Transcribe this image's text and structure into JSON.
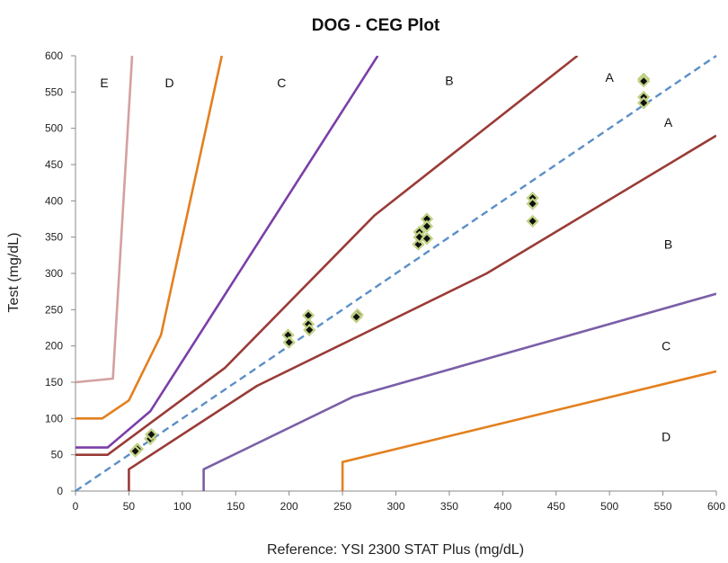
{
  "chart_data": {
    "type": "scatter",
    "title": "DOG - CEG Plot",
    "xlabel": "Reference: YSI 2300 STAT Plus (mg/dL)",
    "ylabel": "Test (mg/dL)",
    "xlim": [
      0,
      600
    ],
    "ylim": [
      0,
      600
    ],
    "xticks": [
      "0",
      "50",
      "100",
      "150",
      "200",
      "250",
      "300",
      "350",
      "400",
      "450",
      "500",
      "550",
      "600"
    ],
    "yticks": [
      "0",
      "50",
      "100",
      "150",
      "200",
      "250",
      "300",
      "350",
      "400",
      "450",
      "500",
      "550",
      "600"
    ],
    "grid": false,
    "legend": "none",
    "identity_line": {
      "x": [
        0,
        600
      ],
      "y": [
        0,
        600
      ],
      "color": "#5b8fc7",
      "style": "dashed"
    },
    "zone_lines": [
      {
        "color": "#d4a0a0",
        "points": [
          [
            0,
            150
          ],
          [
            35,
            155
          ],
          [
            53,
            600
          ]
        ]
      },
      {
        "color": "#e3801e",
        "points": [
          [
            0,
            100
          ],
          [
            25,
            100
          ],
          [
            50,
            125
          ],
          [
            80,
            215
          ],
          [
            137,
            600
          ]
        ]
      },
      {
        "color": "#7b3fa8",
        "points": [
          [
            0,
            60
          ],
          [
            30,
            60
          ],
          [
            70,
            110
          ],
          [
            283,
            600
          ]
        ]
      },
      {
        "color": "#9a3b37",
        "points": [
          [
            0,
            50
          ],
          [
            30,
            50
          ],
          [
            140,
            170
          ],
          [
            280,
            380
          ],
          [
            470,
            600
          ]
        ]
      },
      {
        "color": "#9a3b37",
        "points": [
          [
            50,
            0
          ],
          [
            50,
            30
          ],
          [
            170,
            145
          ],
          [
            385,
            300
          ],
          [
            600,
            490
          ]
        ]
      },
      {
        "color": "#7a5fa8",
        "points": [
          [
            120,
            0
          ],
          [
            120,
            30
          ],
          [
            260,
            130
          ],
          [
            600,
            272
          ]
        ]
      },
      {
        "color": "#e3801e",
        "points": [
          [
            250,
            0
          ],
          [
            250,
            40
          ],
          [
            600,
            165
          ]
        ]
      }
    ],
    "zone_labels": [
      {
        "text": "E",
        "x": 27,
        "y": 563
      },
      {
        "text": "D",
        "x": 88,
        "y": 563
      },
      {
        "text": "C",
        "x": 193,
        "y": 563
      },
      {
        "text": "B",
        "x": 350,
        "y": 566
      },
      {
        "text": "A",
        "x": 500,
        "y": 570
      },
      {
        "text": "A",
        "x": 555,
        "y": 508
      },
      {
        "text": "B",
        "x": 555,
        "y": 340
      },
      {
        "text": "C",
        "x": 553,
        "y": 200
      },
      {
        "text": "D",
        "x": 553,
        "y": 75
      }
    ],
    "series": [
      {
        "points": [
          [
            58,
            58
          ],
          [
            56,
            55
          ],
          [
            70,
            72
          ],
          [
            71,
            78
          ],
          [
            199,
            215
          ],
          [
            200,
            205
          ],
          [
            218,
            242
          ],
          [
            218,
            230
          ],
          [
            219,
            222
          ],
          [
            264,
            243
          ],
          [
            263,
            240
          ],
          [
            322,
            357
          ],
          [
            321,
            340
          ],
          [
            322,
            350
          ],
          [
            329,
            375
          ],
          [
            329,
            365
          ],
          [
            329,
            348
          ],
          [
            428,
            404
          ],
          [
            428,
            396
          ],
          [
            428,
            372
          ],
          [
            532,
            568
          ],
          [
            532,
            565
          ],
          [
            532,
            543
          ],
          [
            532,
            535
          ]
        ]
      }
    ]
  }
}
